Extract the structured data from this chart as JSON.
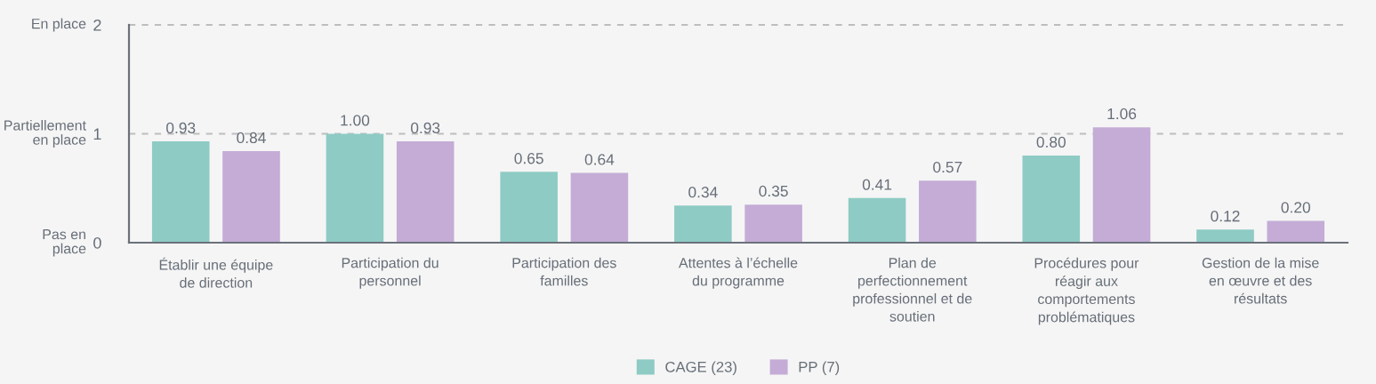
{
  "chart_data": {
    "type": "bar",
    "categories": [
      "Établir une équipe\nde direction",
      "Participation du\npersonnel",
      "Participation des\nfamilles",
      "Attentes à l’échelle\ndu programme",
      "Plan de\nperfectionnement\nprofessionnel et de\nsoutien",
      "Procédures pour\nréagir aux\ncomportements\nproblématiques",
      "Gestion de la mise\nen œuvre et des\nrésultats"
    ],
    "series": [
      {
        "name": "CAGE (23)",
        "color": "#8ecbc4",
        "values": [
          0.93,
          1.0,
          0.65,
          0.34,
          0.41,
          0.8,
          0.12
        ],
        "value_labels": [
          "0.93",
          "1.00",
          "0.65",
          "0.34",
          "0.41",
          "0.80",
          "0.12"
        ]
      },
      {
        "name": "PP (7)",
        "color": "#c4acd6",
        "values": [
          0.84,
          0.93,
          0.64,
          0.35,
          0.57,
          1.06,
          0.2
        ],
        "value_labels": [
          "0.84",
          "0.93",
          "0.64",
          "0.35",
          "0.57",
          "1.06",
          "0.20"
        ]
      }
    ],
    "ylim": [
      0,
      2
    ],
    "yticks": [
      0,
      1,
      2
    ],
    "grid": "y",
    "legend": "bottom",
    "annotations": [
      "Pas en\nplace",
      "Partiellement\nen place",
      "En place"
    ]
  }
}
